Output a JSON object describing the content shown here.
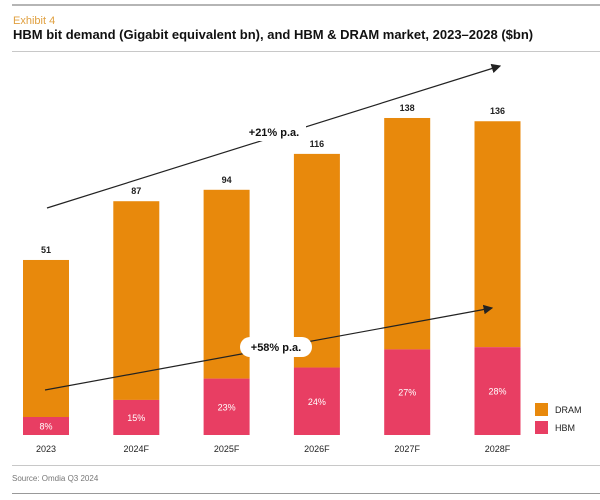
{
  "header": {
    "exhibit": "Exhibit 4",
    "title": "HBM bit demand (Gigabit equivalent bn), and HBM & DRAM market, 2023–2028 ($bn)"
  },
  "footer": {
    "source": "Source: Omdia Q3 2024"
  },
  "colors": {
    "dram": "#E8890C",
    "hbm": "#E83E63",
    "accent": "#E0A040"
  },
  "chart_data": {
    "type": "bar",
    "stacked": true,
    "title": "HBM bit demand (Gigabit equivalent bn), and HBM & DRAM market, 2023–2028 ($bn)",
    "categories": [
      "2023",
      "2024F",
      "2025F",
      "2026F",
      "2027F",
      "2028F"
    ],
    "totals": [
      51,
      87,
      94,
      116,
      138,
      136
    ],
    "hbm_share_labels": [
      "8%",
      "15%",
      "23%",
      "24%",
      "27%",
      "28%"
    ],
    "hbm_share": [
      8,
      15,
      23,
      24,
      27,
      28
    ],
    "series": [
      {
        "name": "DRAM"
      },
      {
        "name": "HBM"
      }
    ],
    "legend": {
      "position": "bottom-right",
      "items": [
        "DRAM",
        "HBM"
      ]
    },
    "annotations": [
      {
        "text": "+21% p.a.",
        "refers_to": "total market growth"
      },
      {
        "text": "+58% p.a.",
        "refers_to": "HBM bit demand growth"
      }
    ],
    "grid": false
  }
}
